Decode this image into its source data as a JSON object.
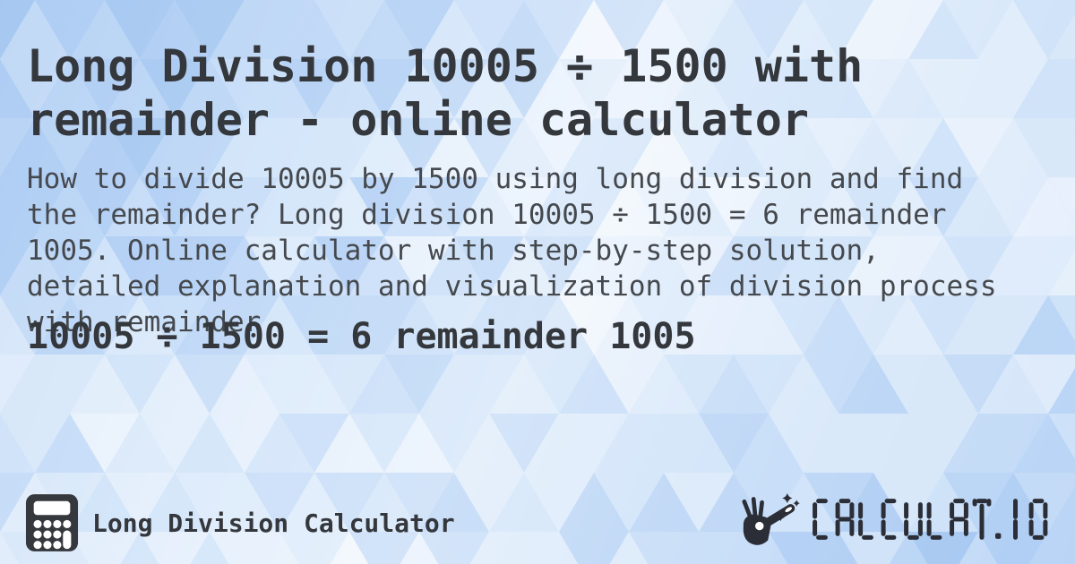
{
  "page": {
    "title": "Long Division 10005 ÷ 1500 with\nremainder - online calculator",
    "description": "How to divide 10005 by 1500 using long division and find\nthe remainder? Long division 10005 ÷ 1500 = 6 remainder\n1005. Online calculator with step-by-step solution,\ndetailed explanation and visualization of division process\nwith remainder.",
    "result": "10005 ÷ 1500 = 6 remainder 1005"
  },
  "footer": {
    "site_label": "Long Division Calculator",
    "logo_text": "CALCULAT.IO"
  },
  "icons": {
    "calculator": "calculator-icon",
    "magic_wand": "magic-wand-icon"
  },
  "colors": {
    "title_text": "#34373c",
    "body_text": "#45494e",
    "icon_dark": "#35383d",
    "logo_dark": "#2b2e37",
    "bg_blues": [
      "#ffffff",
      "#f7fafe",
      "#edf4fd",
      "#e2eefb",
      "#d6e7fa",
      "#c9def8",
      "#bcd6f6",
      "#afcdf4",
      "#a3c6f1"
    ]
  }
}
